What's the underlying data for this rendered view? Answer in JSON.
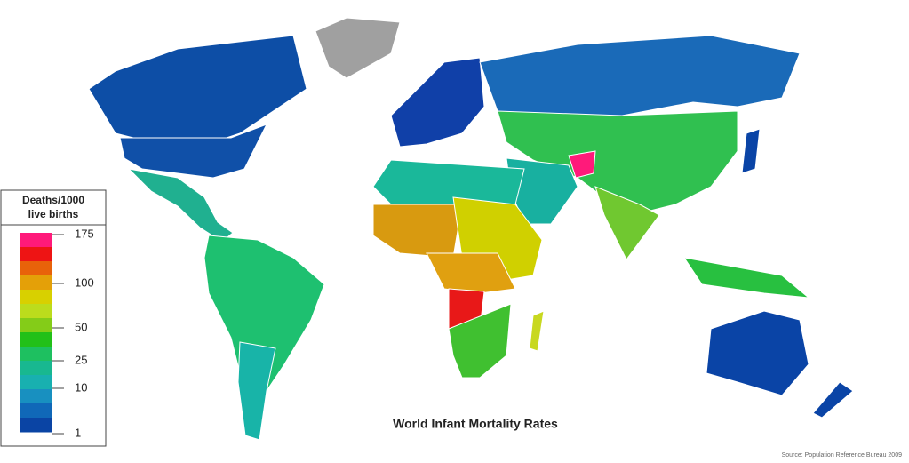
{
  "title": "World Infant Mortality Rates",
  "source": "Source: Population Reference Bureau 2009",
  "legend": {
    "title_line1": "Deaths/1000",
    "title_line2": "live births",
    "ticks": [
      175,
      100,
      50,
      25,
      10,
      1
    ],
    "colors": [
      "#ff1a7a",
      "#ee1414",
      "#e8620a",
      "#e4a008",
      "#d8d000",
      "#bcdc1c",
      "#84cc18",
      "#22c018",
      "#1ec060",
      "#18b890",
      "#18b0b0",
      "#1890c0",
      "#1068b8",
      "#0a44a4"
    ]
  }
}
